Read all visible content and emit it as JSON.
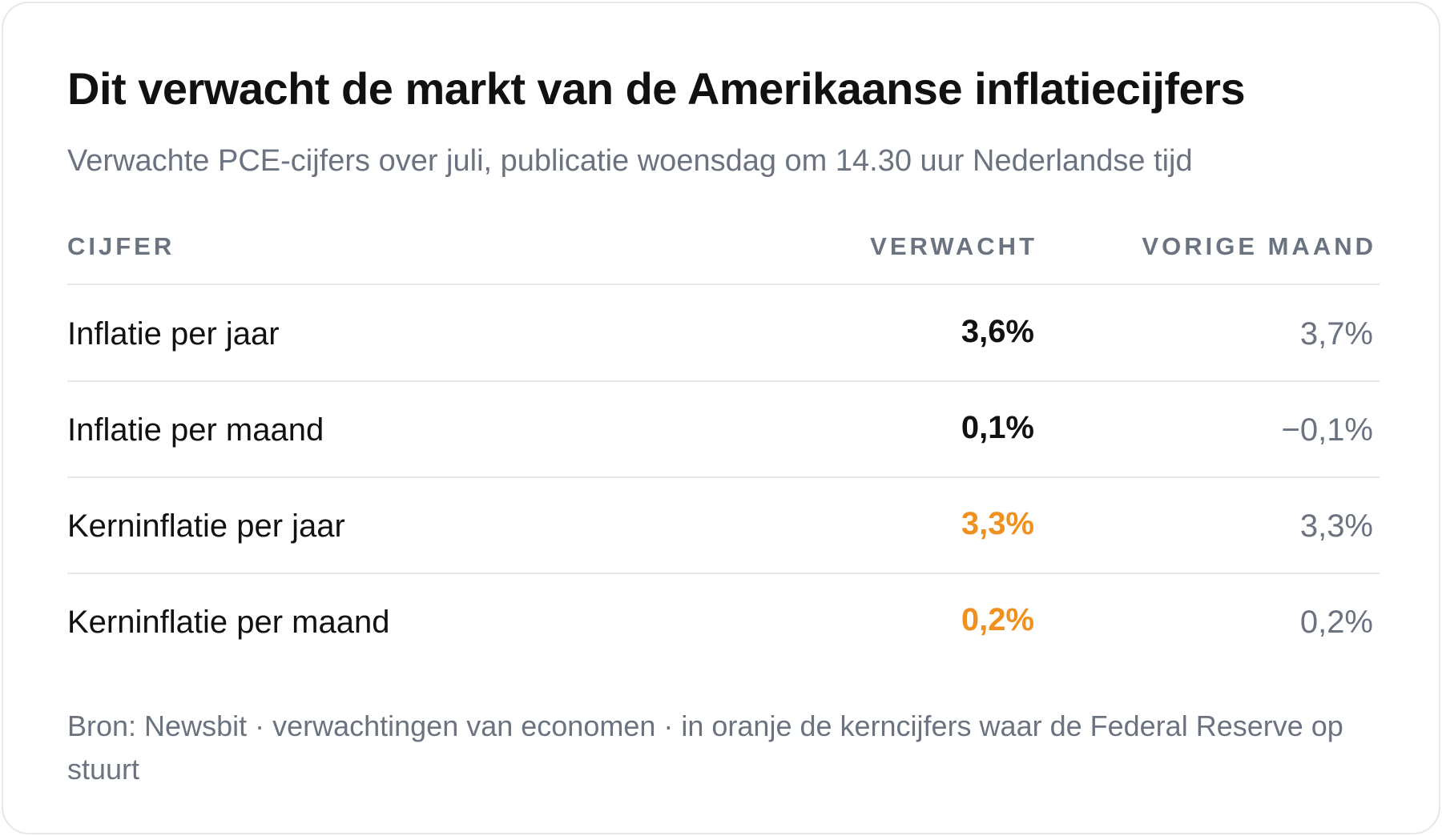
{
  "header": {
    "title": "Dit verwacht de markt van de Amerikaanse inflatiecijfers",
    "subtitle": "Verwachte PCE-cijfers over juli, publicatie woensdag om 14.30 uur Nederlandse tijd"
  },
  "table": {
    "columns": [
      "CIJFER",
      "VERWACHT",
      "VORIGE MAAND"
    ],
    "rows": [
      {
        "label": "Inflatie per jaar",
        "expected": "3,6%",
        "previous": "3,7%",
        "color": "#111111"
      },
      {
        "label": "Inflatie per maand",
        "expected": "0,1%",
        "previous": "−0,1%",
        "color": "#111111"
      },
      {
        "label": "Kerninflatie per jaar",
        "expected": "3,3%",
        "previous": "3,3%",
        "color": "#f0901e"
      },
      {
        "label": "Kerninflatie per maand",
        "expected": "0,2%",
        "previous": "0,2%",
        "color": "#f0901e"
      }
    ]
  },
  "footer": {
    "note": "Bron: Newsbit · verwachtingen van economen · in oranje de kerncijfers waar de Federal Reserve op stuurt"
  }
}
